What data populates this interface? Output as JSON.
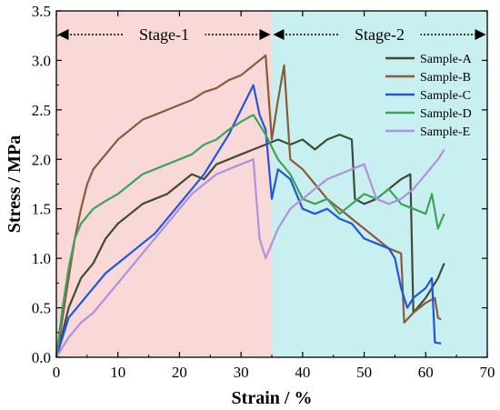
{
  "chart_data": {
    "type": "line",
    "xlabel": "Strain / %",
    "ylabel": "Stress / MPa",
    "xlim": [
      0,
      70
    ],
    "ylim": [
      0,
      3.5
    ],
    "x_ticks": [
      "0",
      "10",
      "20",
      "30",
      "40",
      "50",
      "60",
      "70"
    ],
    "y_ticks": [
      "0.0",
      "0.5",
      "1.0",
      "1.5",
      "2.0",
      "2.5",
      "3.0",
      "3.5"
    ],
    "grid": false,
    "legend_position": "top-right",
    "regions": [
      {
        "label": "Stage-1",
        "x_start": 0,
        "x_end": 35,
        "color": "#f9d8d8"
      },
      {
        "label": "Stage-2",
        "x_start": 35,
        "x_end": 70,
        "color": "#c8f0f0"
      }
    ],
    "series": [
      {
        "name": "Sample-A",
        "color": "#3f4a3a",
        "points": [
          [
            0,
            0
          ],
          [
            2,
            0.5
          ],
          [
            4,
            0.8
          ],
          [
            6,
            0.95
          ],
          [
            8,
            1.2
          ],
          [
            10,
            1.35
          ],
          [
            12,
            1.45
          ],
          [
            14,
            1.55
          ],
          [
            16,
            1.6
          ],
          [
            18,
            1.65
          ],
          [
            20,
            1.75
          ],
          [
            22,
            1.85
          ],
          [
            24,
            1.8
          ],
          [
            26,
            1.95
          ],
          [
            28,
            2.0
          ],
          [
            30,
            2.05
          ],
          [
            32,
            2.1
          ],
          [
            34,
            2.15
          ],
          [
            36,
            2.2
          ],
          [
            38,
            2.15
          ],
          [
            40,
            2.2
          ],
          [
            42,
            2.1
          ],
          [
            44,
            2.2
          ],
          [
            46,
            2.25
          ],
          [
            48,
            2.2
          ],
          [
            48.5,
            1.6
          ],
          [
            50,
            1.55
          ],
          [
            52,
            1.6
          ],
          [
            54,
            1.7
          ],
          [
            56,
            1.8
          ],
          [
            57.5,
            1.85
          ],
          [
            58,
            0.45
          ],
          [
            60,
            0.6
          ],
          [
            62,
            0.8
          ],
          [
            63,
            0.95
          ]
        ]
      },
      {
        "name": "Sample-B",
        "color": "#8b5a3a",
        "points": [
          [
            0,
            0
          ],
          [
            1,
            0.4
          ],
          [
            2,
            0.8
          ],
          [
            3,
            1.2
          ],
          [
            4,
            1.5
          ],
          [
            5,
            1.75
          ],
          [
            6,
            1.9
          ],
          [
            8,
            2.05
          ],
          [
            10,
            2.2
          ],
          [
            12,
            2.3
          ],
          [
            14,
            2.4
          ],
          [
            16,
            2.45
          ],
          [
            18,
            2.5
          ],
          [
            20,
            2.55
          ],
          [
            22,
            2.6
          ],
          [
            24,
            2.68
          ],
          [
            26,
            2.72
          ],
          [
            28,
            2.8
          ],
          [
            30,
            2.85
          ],
          [
            32,
            2.95
          ],
          [
            34,
            3.05
          ],
          [
            35,
            2.2
          ],
          [
            36,
            2.6
          ],
          [
            37,
            2.95
          ],
          [
            38,
            2.0
          ],
          [
            40,
            1.9
          ],
          [
            42,
            1.75
          ],
          [
            44,
            1.6
          ],
          [
            46,
            1.5
          ],
          [
            48,
            1.4
          ],
          [
            50,
            1.3
          ],
          [
            52,
            1.2
          ],
          [
            54,
            1.1
          ],
          [
            56,
            1.05
          ],
          [
            56.5,
            0.35
          ],
          [
            58,
            0.45
          ],
          [
            60,
            0.55
          ],
          [
            61.5,
            0.6
          ],
          [
            62,
            0.4
          ],
          [
            62.5,
            0.38
          ]
        ]
      },
      {
        "name": "Sample-C",
        "color": "#2255dd",
        "points": [
          [
            0,
            0
          ],
          [
            2,
            0.4
          ],
          [
            4,
            0.55
          ],
          [
            6,
            0.7
          ],
          [
            8,
            0.85
          ],
          [
            10,
            0.95
          ],
          [
            12,
            1.05
          ],
          [
            14,
            1.15
          ],
          [
            16,
            1.25
          ],
          [
            18,
            1.4
          ],
          [
            20,
            1.55
          ],
          [
            22,
            1.7
          ],
          [
            24,
            1.85
          ],
          [
            26,
            2.05
          ],
          [
            28,
            2.25
          ],
          [
            30,
            2.5
          ],
          [
            32,
            2.75
          ],
          [
            33,
            2.45
          ],
          [
            34,
            2.3
          ],
          [
            35,
            1.6
          ],
          [
            36,
            1.9
          ],
          [
            38,
            1.8
          ],
          [
            40,
            1.5
          ],
          [
            42,
            1.45
          ],
          [
            44,
            1.5
          ],
          [
            46,
            1.4
          ],
          [
            48,
            1.35
          ],
          [
            50,
            1.2
          ],
          [
            52,
            1.15
          ],
          [
            54,
            1.1
          ],
          [
            55,
            1.0
          ],
          [
            56,
            0.7
          ],
          [
            57,
            0.5
          ],
          [
            58,
            0.6
          ],
          [
            60,
            0.7
          ],
          [
            61,
            0.8
          ],
          [
            61.5,
            0.15
          ],
          [
            62.5,
            0.14
          ]
        ]
      },
      {
        "name": "Sample-D",
        "color": "#3da35a",
        "points": [
          [
            0,
            0
          ],
          [
            1,
            0.5
          ],
          [
            2,
            0.9
          ],
          [
            3,
            1.2
          ],
          [
            4,
            1.35
          ],
          [
            6,
            1.5
          ],
          [
            8,
            1.58
          ],
          [
            10,
            1.65
          ],
          [
            12,
            1.75
          ],
          [
            14,
            1.85
          ],
          [
            16,
            1.9
          ],
          [
            18,
            1.95
          ],
          [
            20,
            2.0
          ],
          [
            22,
            2.05
          ],
          [
            24,
            2.15
          ],
          [
            26,
            2.2
          ],
          [
            28,
            2.3
          ],
          [
            30,
            2.38
          ],
          [
            32,
            2.45
          ],
          [
            33,
            2.35
          ],
          [
            34,
            2.25
          ],
          [
            36,
            2.0
          ],
          [
            38,
            1.85
          ],
          [
            40,
            1.6
          ],
          [
            42,
            1.55
          ],
          [
            44,
            1.6
          ],
          [
            46,
            1.45
          ],
          [
            48,
            1.55
          ],
          [
            50,
            1.65
          ],
          [
            52,
            1.6
          ],
          [
            54,
            1.7
          ],
          [
            56,
            1.55
          ],
          [
            58,
            1.5
          ],
          [
            60,
            1.45
          ],
          [
            61,
            1.65
          ],
          [
            62,
            1.3
          ],
          [
            63,
            1.45
          ]
        ]
      },
      {
        "name": "Sample-E",
        "color": "#b090e0",
        "points": [
          [
            0,
            0
          ],
          [
            2,
            0.2
          ],
          [
            4,
            0.35
          ],
          [
            6,
            0.45
          ],
          [
            8,
            0.6
          ],
          [
            10,
            0.75
          ],
          [
            12,
            0.9
          ],
          [
            14,
            1.05
          ],
          [
            16,
            1.2
          ],
          [
            18,
            1.35
          ],
          [
            20,
            1.5
          ],
          [
            22,
            1.65
          ],
          [
            24,
            1.75
          ],
          [
            26,
            1.85
          ],
          [
            28,
            1.9
          ],
          [
            30,
            1.95
          ],
          [
            32,
            2.0
          ],
          [
            33,
            1.2
          ],
          [
            34,
            1.0
          ],
          [
            36,
            1.3
          ],
          [
            38,
            1.5
          ],
          [
            40,
            1.6
          ],
          [
            42,
            1.7
          ],
          [
            44,
            1.8
          ],
          [
            46,
            1.85
          ],
          [
            48,
            1.9
          ],
          [
            50,
            1.95
          ],
          [
            52,
            1.6
          ],
          [
            54,
            1.55
          ],
          [
            56,
            1.6
          ],
          [
            58,
            1.7
          ],
          [
            60,
            1.85
          ],
          [
            62,
            2.0
          ],
          [
            63,
            2.1
          ]
        ]
      }
    ]
  }
}
